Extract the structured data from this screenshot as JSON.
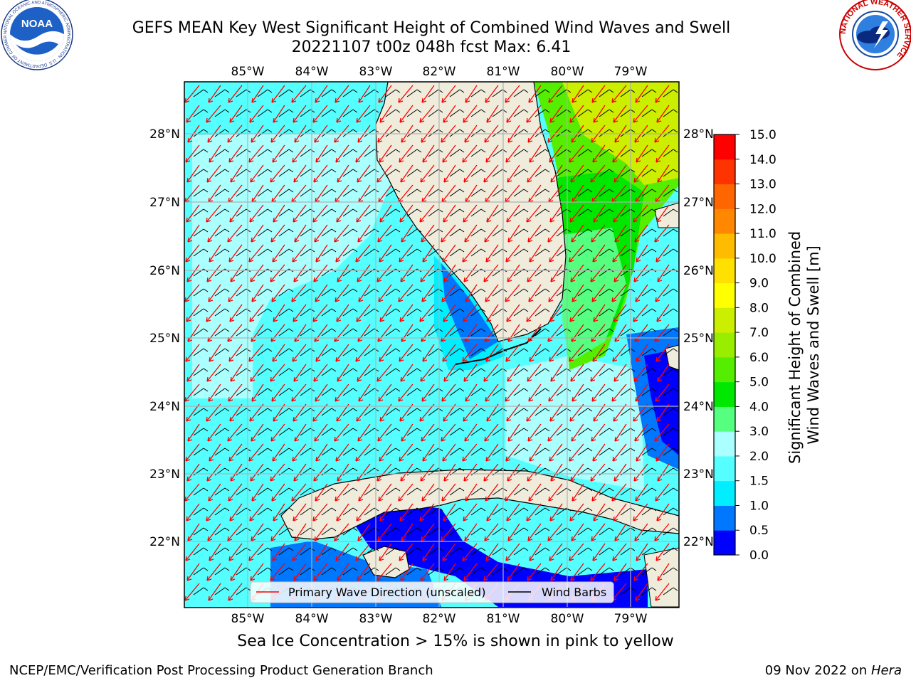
{
  "header": {
    "title_line1": "GEFS MEAN Key West Significant Height of Combined Wind Waves and Swell",
    "title_line2": "20221107 t00z 048h fcst   Max: 6.41"
  },
  "logos": {
    "left": {
      "icon": "noaa-logo",
      "text": "NOAA",
      "ring_text": "NATIONAL OCEANIC AND ATMOSPHERIC ADMINISTRATION · U.S. DEPARTMENT OF COMMERCE"
    },
    "right": {
      "icon": "nws-logo",
      "ring_text": "NATIONAL WEATHER SERVICE"
    }
  },
  "map": {
    "lon_labels": [
      "85°W",
      "84°W",
      "83°W",
      "82°W",
      "81°W",
      "80°W",
      "79°W"
    ],
    "lat_labels": [
      "28°N",
      "27°N",
      "26°N",
      "25°N",
      "24°N",
      "23°N",
      "22°N"
    ],
    "colors": {
      "land": "#efecdc",
      "grid": "#b0b0b0",
      "wave_arrow": "#ff0000",
      "wind_barb": "#000000",
      "coast": "#000000"
    }
  },
  "legend": {
    "wave_label": "Primary Wave Direction (unscaled)",
    "barb_label": "Wind Barbs"
  },
  "colorbar": {
    "label_line1": "Significant Height of Combined",
    "label_line2": "Wind Waves and Swell [m]",
    "ticks": [
      "15.0",
      "14.0",
      "13.0",
      "12.0",
      "11.0",
      "10.0",
      "9.0",
      "8.0",
      "7.0",
      "6.0",
      "5.0",
      "4.0",
      "3.0",
      "2.0",
      "1.5",
      "1.0",
      "0.5",
      "0.0"
    ],
    "colors": [
      "#0000ff",
      "#0077ff",
      "#00eeff",
      "#55ffff",
      "#aaffff",
      "#55ff80",
      "#00e800",
      "#55ee00",
      "#99ee00",
      "#ccee00",
      "#ffff00",
      "#ffe000",
      "#ffbb00",
      "#ff8800",
      "#ff6600",
      "#ff3300",
      "#ff0000"
    ]
  },
  "footer": {
    "subtitle": "Sea Ice Concentration > 15% is shown in pink to yellow",
    "left": "NCEP/EMC/Verification Post Processing Product Generation Branch",
    "right_prefix": "09 Nov 2022 on ",
    "right_host": "Hera"
  }
}
